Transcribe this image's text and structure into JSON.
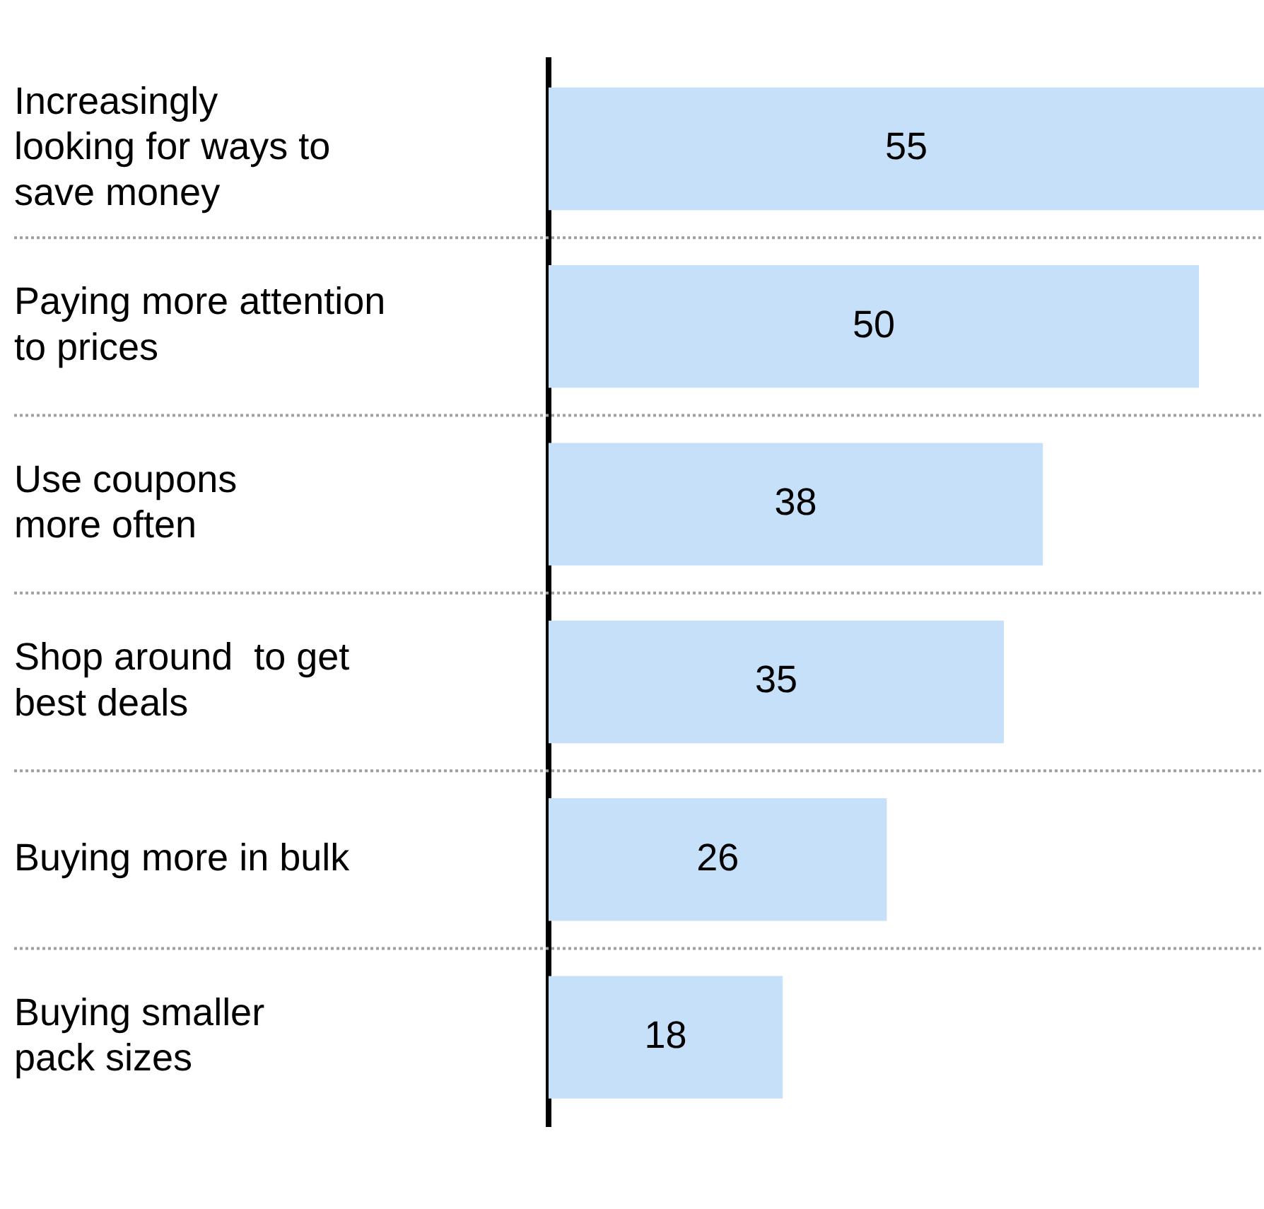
{
  "chart_data": {
    "type": "bar",
    "orientation": "horizontal",
    "categories": [
      "Increasingly\nlooking for ways to\nsave money",
      "Paying more attention\nto prices",
      "Use coupons\nmore often",
      "Shop around  to get\nbest deals",
      "Buying more in bulk",
      "Buying smaller\npack sizes"
    ],
    "values": [
      55,
      50,
      38,
      35,
      26,
      18
    ],
    "color": "#c6e0fa",
    "data_labels": true,
    "grid": "y",
    "tick_labels": "y",
    "legend": false
  }
}
